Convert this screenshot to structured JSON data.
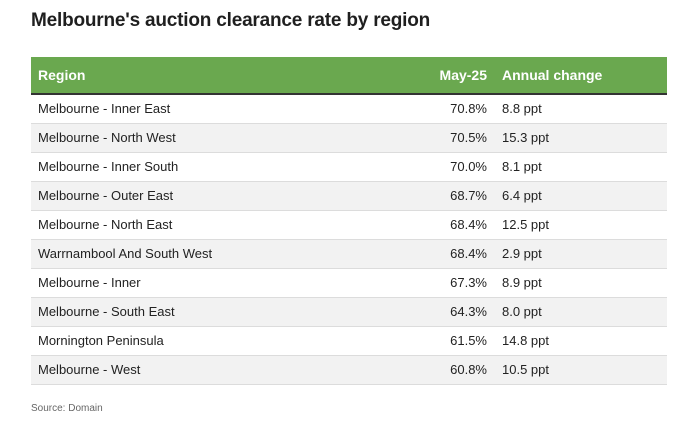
{
  "title": "Melbourne's auction clearance rate by region",
  "source": "Source: Domain",
  "chart_data": {
    "type": "table",
    "title": "Melbourne's auction clearance rate by region",
    "columns": [
      "Region",
      "May-25",
      "Annual change"
    ],
    "rows": [
      [
        "Melbourne - Inner East",
        "70.8%",
        "8.8 ppt"
      ],
      [
        "Melbourne - North West",
        "70.5%",
        "15.3 ppt"
      ],
      [
        "Melbourne - Inner South",
        "70.0%",
        "8.1 ppt"
      ],
      [
        "Melbourne - Outer East",
        "68.7%",
        "6.4 ppt"
      ],
      [
        "Melbourne - North East",
        "68.4%",
        "12.5 ppt"
      ],
      [
        "Warrnambool And South West",
        "68.4%",
        "2.9 ppt"
      ],
      [
        "Melbourne - Inner",
        "67.3%",
        "8.9 ppt"
      ],
      [
        "Melbourne - South East",
        "64.3%",
        "8.0 ppt"
      ],
      [
        "Mornington Peninsula",
        "61.5%",
        "14.8 ppt"
      ],
      [
        "Melbourne - West",
        "60.8%",
        "10.5 ppt"
      ]
    ],
    "header_color": "#6aa84f",
    "stripe_color": "#f2f2f2"
  }
}
